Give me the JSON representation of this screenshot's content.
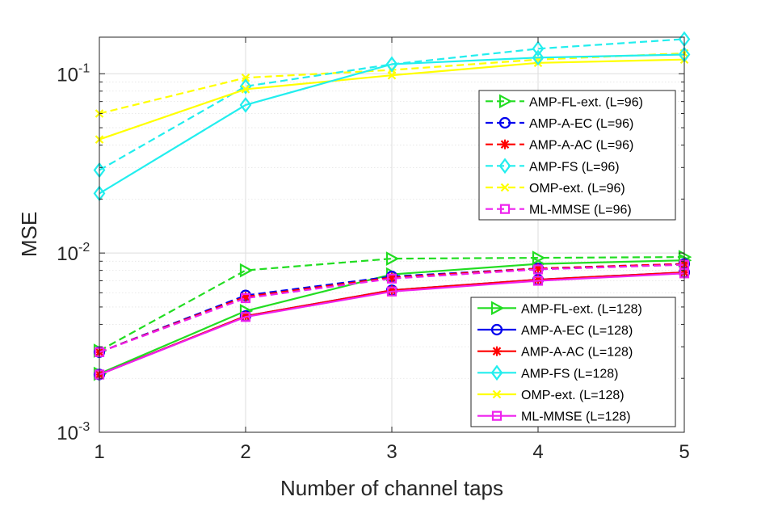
{
  "chart_data": {
    "type": "line",
    "title": "",
    "xlabel": "Number of channel taps",
    "ylabel": "MSE",
    "yscale": "log",
    "x": [
      1,
      2,
      3,
      4,
      5
    ],
    "xlim": [
      1,
      5
    ],
    "ylim": [
      0.001,
      0.16
    ],
    "xticks": [
      "1",
      "2",
      "3",
      "4",
      "5"
    ],
    "yticks": [
      {
        "value": 0.001,
        "base": "10",
        "exp": "-3"
      },
      {
        "value": 0.01,
        "base": "10",
        "exp": "-2"
      },
      {
        "value": 0.1,
        "base": "10",
        "exp": "-1"
      }
    ],
    "grid": true,
    "colors": {
      "green": "#22dd22",
      "blue": "#0000ee",
      "red": "#ff0000",
      "cyan": "#22eeee",
      "yellow": "#ffff00",
      "magenta": "#ee22ee"
    },
    "legends": [
      {
        "placement": "upper-right",
        "entries": [
          0,
          1,
          2,
          3,
          4,
          5
        ]
      },
      {
        "placement": "lower-right",
        "entries": [
          6,
          7,
          8,
          9,
          10,
          11
        ]
      }
    ],
    "series": [
      {
        "name": "AMP-FL-ext. (L=96)",
        "values": [
          0.00285,
          0.008,
          0.0093,
          0.0094,
          0.0095
        ],
        "color": "green",
        "dash": true,
        "marker": "triangle-right"
      },
      {
        "name": "AMP-A-EC (L=96)",
        "values": [
          0.0028,
          0.0058,
          0.0074,
          0.0082,
          0.0087
        ],
        "color": "blue",
        "dash": true,
        "marker": "circle"
      },
      {
        "name": "AMP-A-AC (L=96)",
        "values": [
          0.0028,
          0.0057,
          0.0073,
          0.0082,
          0.0087
        ],
        "color": "red",
        "dash": true,
        "marker": "asterisk"
      },
      {
        "name": "AMP-FS (L=96)",
        "values": [
          0.029,
          0.085,
          0.113,
          0.138,
          0.156
        ],
        "color": "cyan",
        "dash": true,
        "marker": "diamond"
      },
      {
        "name": "OMP-ext. (L=96)",
        "values": [
          0.06,
          0.095,
          0.105,
          0.12,
          0.13
        ],
        "color": "yellow",
        "dash": true,
        "marker": "x"
      },
      {
        "name": "ML-MMSE (L=96)",
        "values": [
          0.0028,
          0.0056,
          0.0072,
          0.0081,
          0.0086
        ],
        "color": "magenta",
        "dash": true,
        "marker": "square"
      },
      {
        "name": "AMP-FL-ext. (L=128)",
        "values": [
          0.00212,
          0.00475,
          0.0076,
          0.0087,
          0.0091
        ],
        "color": "green",
        "dash": false,
        "marker": "triangle-right"
      },
      {
        "name": "AMP-A-EC (L=128)",
        "values": [
          0.0021,
          0.00445,
          0.0062,
          0.0071,
          0.0078
        ],
        "color": "blue",
        "dash": false,
        "marker": "circle"
      },
      {
        "name": "AMP-A-AC (L=128)",
        "values": [
          0.0021,
          0.00445,
          0.0062,
          0.0071,
          0.0078
        ],
        "color": "red",
        "dash": false,
        "marker": "asterisk"
      },
      {
        "name": "AMP-FS (L=128)",
        "values": [
          0.0215,
          0.067,
          0.113,
          0.123,
          0.128
        ],
        "color": "cyan",
        "dash": false,
        "marker": "diamond"
      },
      {
        "name": "OMP-ext. (L=128)",
        "values": [
          0.043,
          0.082,
          0.098,
          0.115,
          0.12
        ],
        "color": "yellow",
        "dash": false,
        "marker": "x"
      },
      {
        "name": "ML-MMSE (L=128)",
        "values": [
          0.0021,
          0.0044,
          0.0061,
          0.007,
          0.0077
        ],
        "color": "magenta",
        "dash": false,
        "marker": "square"
      }
    ]
  }
}
